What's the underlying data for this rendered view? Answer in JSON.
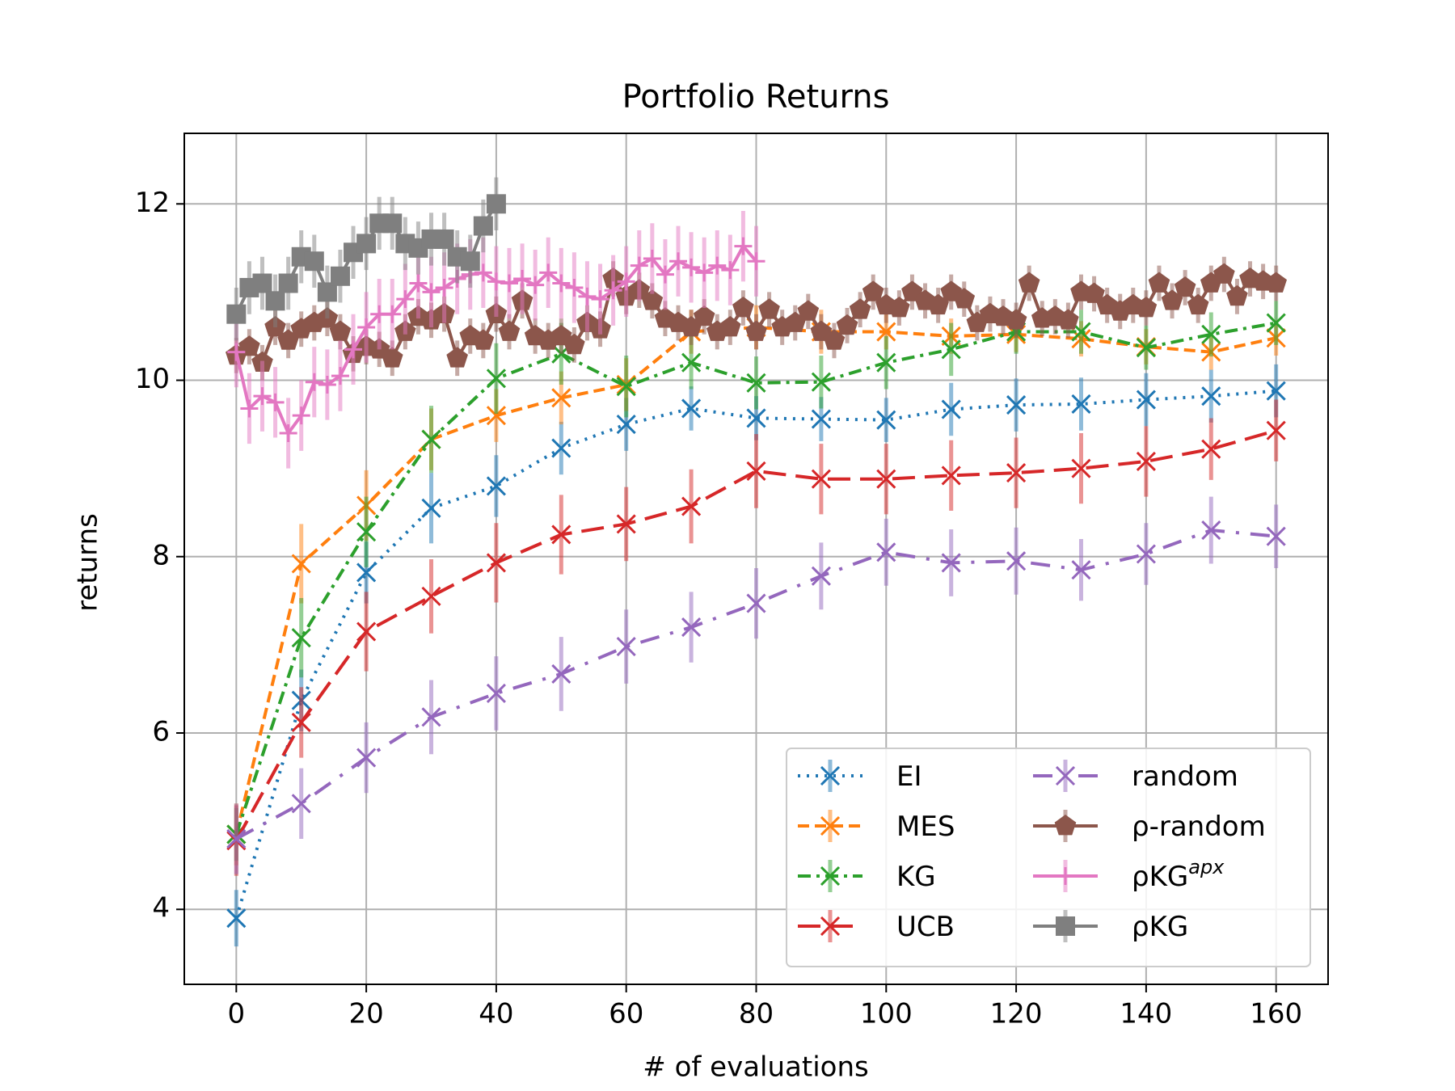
{
  "chart_data": {
    "type": "line",
    "title": "Portfolio Returns",
    "xlabel": "# of evaluations",
    "ylabel": "returns",
    "xlim": [
      -8,
      168
    ],
    "ylim": [
      3.15,
      12.8
    ],
    "xticks": [
      0,
      20,
      40,
      60,
      80,
      100,
      120,
      140,
      160
    ],
    "yticks": [
      4,
      6,
      8,
      10,
      12
    ],
    "grid": true,
    "legend": "lower right",
    "series": [
      {
        "name": "EI",
        "color": "#1f77b4",
        "linestyle": "dotted",
        "marker": "x",
        "x": [
          0,
          10,
          20,
          30,
          40,
          50,
          60,
          70,
          80,
          90,
          100,
          110,
          120,
          130,
          140,
          150,
          160
        ],
        "values": [
          3.9,
          6.37,
          7.82,
          8.55,
          8.8,
          9.23,
          9.5,
          9.68,
          9.57,
          9.56,
          9.55,
          9.67,
          9.72,
          9.73,
          9.78,
          9.82,
          9.88
        ],
        "errors": [
          0.32,
          0.35,
          0.35,
          0.4,
          0.35,
          0.3,
          0.3,
          0.25,
          0.25,
          0.25,
          0.25,
          0.3,
          0.3,
          0.3,
          0.3,
          0.3,
          0.3
        ]
      },
      {
        "name": "MES",
        "color": "#ff7f0e",
        "linestyle": "dashed",
        "marker": "x",
        "x": [
          0,
          10,
          20,
          30,
          40,
          50,
          60,
          70,
          80,
          90,
          100,
          110,
          120,
          130,
          140,
          150,
          160
        ],
        "values": [
          4.85,
          7.92,
          8.58,
          9.33,
          9.6,
          9.8,
          9.95,
          10.55,
          10.6,
          10.55,
          10.55,
          10.5,
          10.52,
          10.47,
          10.38,
          10.32,
          10.48
        ],
        "errors": [
          0.35,
          0.45,
          0.4,
          0.35,
          0.3,
          0.3,
          0.3,
          0.25,
          0.25,
          0.25,
          0.2,
          0.2,
          0.2,
          0.2,
          0.2,
          0.2,
          0.2
        ]
      },
      {
        "name": "KG",
        "color": "#2ca02c",
        "linestyle": "dashdot",
        "marker": "x",
        "x": [
          0,
          10,
          20,
          30,
          40,
          50,
          60,
          70,
          80,
          90,
          100,
          110,
          120,
          130,
          140,
          150,
          160
        ],
        "values": [
          4.85,
          7.08,
          8.28,
          9.33,
          10.02,
          10.3,
          9.93,
          10.2,
          9.97,
          9.98,
          10.2,
          10.35,
          10.55,
          10.55,
          10.37,
          10.52,
          10.65
        ],
        "errors": [
          0.3,
          0.45,
          0.4,
          0.38,
          0.4,
          0.35,
          0.35,
          0.3,
          0.3,
          0.3,
          0.3,
          0.3,
          0.25,
          0.25,
          0.25,
          0.25,
          0.25
        ]
      },
      {
        "name": "UCB",
        "color": "#d62728",
        "linestyle": "longdash",
        "marker": "x",
        "x": [
          0,
          10,
          20,
          30,
          40,
          50,
          60,
          70,
          80,
          90,
          100,
          110,
          120,
          130,
          140,
          150,
          160
        ],
        "values": [
          4.78,
          6.12,
          7.15,
          7.55,
          7.93,
          8.25,
          8.37,
          8.57,
          8.97,
          8.88,
          8.88,
          8.92,
          8.95,
          9.0,
          9.08,
          9.22,
          9.43
        ],
        "errors": [
          0.4,
          0.4,
          0.45,
          0.42,
          0.45,
          0.45,
          0.42,
          0.42,
          0.42,
          0.4,
          0.4,
          0.4,
          0.4,
          0.4,
          0.4,
          0.35,
          0.35
        ]
      },
      {
        "name": "random",
        "color": "#9467bd",
        "linestyle": "longdashdot",
        "marker": "x",
        "x": [
          0,
          10,
          20,
          30,
          40,
          50,
          60,
          70,
          80,
          90,
          100,
          110,
          120,
          130,
          140,
          150,
          160
        ],
        "values": [
          4.8,
          5.2,
          5.72,
          6.18,
          6.45,
          6.67,
          6.98,
          7.2,
          7.47,
          7.78,
          8.05,
          7.93,
          7.95,
          7.85,
          8.03,
          8.3,
          8.23
        ],
        "errors": [
          0.4,
          0.4,
          0.4,
          0.42,
          0.42,
          0.42,
          0.42,
          0.4,
          0.4,
          0.38,
          0.38,
          0.38,
          0.38,
          0.35,
          0.35,
          0.38,
          0.36
        ]
      },
      {
        "name": "ρ-random",
        "color": "#8c564b",
        "linestyle": "solid",
        "marker": "pentagon",
        "x": [
          0,
          2,
          4,
          6,
          8,
          10,
          12,
          14,
          16,
          18,
          20,
          22,
          24,
          26,
          28,
          30,
          32,
          34,
          36,
          38,
          40,
          42,
          44,
          46,
          48,
          50,
          52,
          54,
          56,
          58,
          60,
          62,
          64,
          66,
          68,
          70,
          72,
          74,
          76,
          78,
          80,
          82,
          84,
          86,
          88,
          90,
          92,
          94,
          96,
          98,
          100,
          102,
          104,
          106,
          108,
          110,
          112,
          114,
          116,
          118,
          120,
          122,
          124,
          126,
          128,
          130,
          132,
          134,
          136,
          138,
          140,
          142,
          144,
          146,
          148,
          150,
          152,
          154,
          156,
          158,
          160
        ],
        "values": [
          10.28,
          10.38,
          10.2,
          10.6,
          10.45,
          10.58,
          10.65,
          10.7,
          10.55,
          10.3,
          10.38,
          10.35,
          10.25,
          10.55,
          10.72,
          10.68,
          10.75,
          10.25,
          10.5,
          10.45,
          10.75,
          10.55,
          10.9,
          10.5,
          10.45,
          10.5,
          10.4,
          10.65,
          10.58,
          11.15,
          10.95,
          11.02,
          10.9,
          10.7,
          10.65,
          10.6,
          10.72,
          10.55,
          10.6,
          10.82,
          10.55,
          10.8,
          10.6,
          10.65,
          10.78,
          10.55,
          10.45,
          10.62,
          10.8,
          11.0,
          10.85,
          10.82,
          11.0,
          10.9,
          10.85,
          11.0,
          10.92,
          10.65,
          10.75,
          10.72,
          10.68,
          11.1,
          10.7,
          10.72,
          10.68,
          11.0,
          10.98,
          10.85,
          10.78,
          10.85,
          10.82,
          11.1,
          10.9,
          11.05,
          10.85,
          11.1,
          11.2,
          10.95,
          11.15,
          11.12,
          11.1
        ],
        "errors": [
          0.2,
          0.2,
          0.2,
          0.2,
          0.2,
          0.2,
          0.2,
          0.2,
          0.2,
          0.2,
          0.2,
          0.2,
          0.2,
          0.2,
          0.2,
          0.2,
          0.2,
          0.2,
          0.2,
          0.2,
          0.2,
          0.2,
          0.2,
          0.2,
          0.2,
          0.2,
          0.2,
          0.2,
          0.2,
          0.2,
          0.2,
          0.2,
          0.2,
          0.2,
          0.2,
          0.2,
          0.2,
          0.2,
          0.2,
          0.2,
          0.2,
          0.2,
          0.2,
          0.2,
          0.2,
          0.2,
          0.2,
          0.2,
          0.2,
          0.2,
          0.2,
          0.2,
          0.2,
          0.2,
          0.2,
          0.2,
          0.2,
          0.2,
          0.2,
          0.2,
          0.2,
          0.2,
          0.2,
          0.2,
          0.2,
          0.2,
          0.2,
          0.2,
          0.2,
          0.2,
          0.2,
          0.2,
          0.2,
          0.2,
          0.2,
          0.2,
          0.2,
          0.2,
          0.2,
          0.2,
          0.2
        ]
      },
      {
        "name": "ρKG",
        "name_sup": "apx",
        "color": "#e377c2",
        "linestyle": "solid",
        "marker": "plus",
        "x": [
          0,
          2,
          4,
          6,
          8,
          10,
          12,
          14,
          16,
          18,
          20,
          22,
          24,
          26,
          28,
          30,
          32,
          34,
          36,
          38,
          40,
          42,
          44,
          46,
          48,
          50,
          52,
          54,
          56,
          58,
          60,
          62,
          64,
          66,
          68,
          70,
          72,
          74,
          76,
          78,
          80
        ],
        "values": [
          10.32,
          9.68,
          9.82,
          9.75,
          9.4,
          9.6,
          9.98,
          9.95,
          10.05,
          10.35,
          10.6,
          10.75,
          10.75,
          10.92,
          11.1,
          11.0,
          11.05,
          11.15,
          11.2,
          11.22,
          11.12,
          11.1,
          11.15,
          11.08,
          11.22,
          11.1,
          11.05,
          10.95,
          10.92,
          11.02,
          11.12,
          11.3,
          11.38,
          11.2,
          11.35,
          11.28,
          11.22,
          11.3,
          11.25,
          11.52,
          11.35
        ],
        "errors": [
          0.4,
          0.4,
          0.4,
          0.4,
          0.4,
          0.4,
          0.4,
          0.4,
          0.4,
          0.4,
          0.4,
          0.4,
          0.4,
          0.4,
          0.4,
          0.4,
          0.4,
          0.4,
          0.4,
          0.4,
          0.4,
          0.4,
          0.4,
          0.4,
          0.4,
          0.4,
          0.4,
          0.4,
          0.4,
          0.4,
          0.4,
          0.4,
          0.4,
          0.4,
          0.4,
          0.4,
          0.4,
          0.4,
          0.4,
          0.4,
          0.4
        ]
      },
      {
        "name": "ρKG",
        "color": "#7f7f7f",
        "linestyle": "solid",
        "marker": "square",
        "x": [
          0,
          2,
          4,
          6,
          8,
          10,
          12,
          14,
          16,
          18,
          20,
          22,
          24,
          26,
          28,
          30,
          32,
          34,
          36,
          38,
          40
        ],
        "values": [
          10.75,
          11.05,
          11.1,
          10.9,
          11.1,
          11.4,
          11.35,
          11.0,
          11.18,
          11.45,
          11.55,
          11.78,
          11.78,
          11.55,
          11.5,
          11.6,
          11.6,
          11.4,
          11.35,
          11.75,
          12.0
        ],
        "errors": [
          0.3,
          0.3,
          0.3,
          0.3,
          0.3,
          0.3,
          0.3,
          0.3,
          0.3,
          0.3,
          0.3,
          0.3,
          0.3,
          0.3,
          0.3,
          0.3,
          0.3,
          0.3,
          0.3,
          0.3,
          0.3
        ]
      }
    ]
  }
}
